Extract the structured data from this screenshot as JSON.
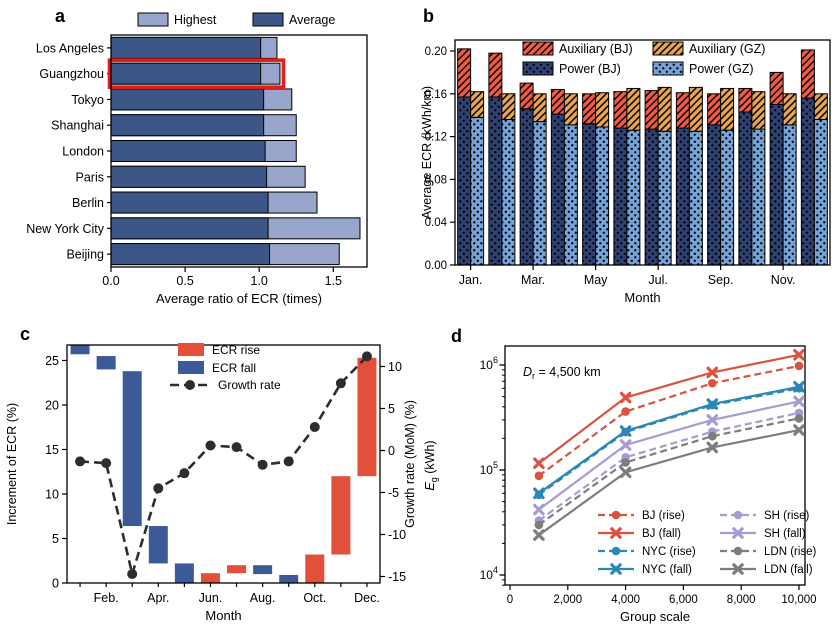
{
  "figure": {
    "background": "#ffffff"
  },
  "panels": {
    "a": {
      "label": "a"
    },
    "b": {
      "label": "b"
    },
    "c": {
      "label": "c"
    },
    "d": {
      "label": "d"
    }
  },
  "chart_data": [
    {
      "id": "a",
      "type": "bar",
      "orientation": "horizontal",
      "xlabel": "Average ratio of ECR (times)",
      "xlim": [
        0,
        1.73
      ],
      "xticks": [
        0.0,
        0.5,
        1.0,
        1.5
      ],
      "xtick_labels": [
        "0.0",
        "0.5",
        "1.0",
        "1.5"
      ],
      "categories": [
        "Los Angeles",
        "Guangzhou",
        "Tokyo",
        "Shanghai",
        "London",
        "Paris",
        "Berlin",
        "New York City",
        "Beijing"
      ],
      "series": [
        {
          "name": "Highest",
          "color": "#97a6ca",
          "values": [
            1.12,
            1.14,
            1.22,
            1.25,
            1.25,
            1.31,
            1.39,
            1.68,
            1.54
          ]
        },
        {
          "name": "Average",
          "color": "#3d5688",
          "values": [
            1.01,
            1.01,
            1.03,
            1.03,
            1.04,
            1.05,
            1.06,
            1.06,
            1.07
          ]
        }
      ],
      "legend": {
        "position": "top",
        "entries": [
          "Highest",
          "Average"
        ]
      },
      "highlight": {
        "category": "Guangzhou",
        "color": "#e61e19"
      }
    },
    {
      "id": "b",
      "type": "bar",
      "subtype": "grouped-stacked",
      "xlabel": "Month",
      "ylabel": "Average ECR (kWh/km)",
      "ylim": [
        0,
        0.21
      ],
      "yticks": [
        0.0,
        0.04,
        0.08,
        0.12,
        0.16,
        0.2
      ],
      "ytick_labels": [
        "0.00",
        "0.04",
        "0.08",
        "0.12",
        "0.16",
        "0.20"
      ],
      "categories": [
        "Jan.",
        "Feb.",
        "Mar.",
        "Apr.",
        "May",
        "Jun.",
        "Jul.",
        "Aug.",
        "Sep.",
        "Oct.",
        "Nov.",
        "Dec."
      ],
      "xtick_label_indices": [
        0,
        2,
        4,
        6,
        8,
        10
      ],
      "groups": [
        {
          "name": "BJ",
          "stacks": [
            {
              "name": "Power (BJ)",
              "color": "#2e4172",
              "hatch": "dots",
              "values": [
                0.157,
                0.157,
                0.146,
                0.141,
                0.132,
                0.128,
                0.127,
                0.128,
                0.131,
                0.143,
                0.15,
                0.156
              ]
            },
            {
              "name": "Auxiliary (BJ)",
              "color": "#f25a46",
              "hatch": "diag",
              "values": [
                0.045,
                0.041,
                0.024,
                0.023,
                0.028,
                0.034,
                0.036,
                0.033,
                0.029,
                0.022,
                0.03,
                0.045
              ]
            }
          ]
        },
        {
          "name": "GZ",
          "stacks": [
            {
              "name": "Power (GZ)",
              "color": "#75a3d7",
              "hatch": "dots",
              "values": [
                0.138,
                0.136,
                0.134,
                0.131,
                0.129,
                0.126,
                0.125,
                0.125,
                0.126,
                0.127,
                0.131,
                0.136
              ]
            },
            {
              "name": "Auxiliary (GZ)",
              "color": "#e7a452",
              "hatch": "diag",
              "values": [
                0.024,
                0.024,
                0.026,
                0.029,
                0.032,
                0.039,
                0.041,
                0.041,
                0.039,
                0.035,
                0.029,
                0.024
              ]
            }
          ]
        }
      ],
      "legend_order": [
        "Auxiliary (BJ)",
        "Power (BJ)",
        "Auxiliary (GZ)",
        "Power (GZ)"
      ]
    },
    {
      "id": "c",
      "type": "waterfall+line",
      "xlabel": "Month",
      "ylabel_left": "Increment of ECR (%)",
      "ylabel_right": "Growth rate (MoM) (%)",
      "ylim_left": [
        0,
        26.7
      ],
      "yticks_left": [
        0,
        5,
        10,
        15,
        20,
        25
      ],
      "ylim_right": [
        -15.8,
        12.6
      ],
      "yticks_right": [
        -15,
        -10,
        -5,
        0,
        5,
        10
      ],
      "categories": [
        "Jan.",
        "Feb.",
        "Mar.",
        "Apr.",
        "May",
        "Jun.",
        "Jul.",
        "Aug.",
        "Sep.",
        "Oct.",
        "Nov.",
        "Dec."
      ],
      "xtick_label_indices": [
        1,
        3,
        5,
        7,
        9,
        11
      ],
      "bars": [
        {
          "month": "Jan.",
          "type": "fall",
          "from": 25.7,
          "to": 26.7
        },
        {
          "month": "Feb.",
          "type": "fall",
          "from": 24.0,
          "to": 25.5
        },
        {
          "month": "Mar.",
          "type": "fall",
          "from": 6.4,
          "to": 23.8
        },
        {
          "month": "Apr.",
          "type": "fall",
          "from": 2.2,
          "to": 6.4
        },
        {
          "month": "May",
          "type": "fall",
          "from": 0,
          "to": 2.2
        },
        {
          "month": "Jun.",
          "type": "rise",
          "from": 0,
          "to": 1.1
        },
        {
          "month": "Jul.",
          "type": "rise",
          "from": 1.1,
          "to": 2.0
        },
        {
          "month": "Aug.",
          "type": "fall",
          "from": 1.0,
          "to": 2.0
        },
        {
          "month": "Sep.",
          "type": "fall",
          "from": 0,
          "to": 0.9
        },
        {
          "month": "Oct.",
          "type": "rise",
          "from": 0,
          "to": 3.2
        },
        {
          "month": "Nov.",
          "type": "rise",
          "from": 3.2,
          "to": 12.0
        },
        {
          "month": "Dec.",
          "type": "rise",
          "from": 12.0,
          "to": 25.3
        }
      ],
      "growth_rate": [
        -1.3,
        -1.5,
        -14.7,
        -4.5,
        -2.7,
        0.6,
        0.4,
        -1.7,
        -1.3,
        2.8,
        8.0,
        11.2
      ],
      "colors": {
        "rise": "#e2503c",
        "fall": "#3d5a98",
        "line": "#2d2d2d"
      },
      "legend": [
        "ECR rise",
        "ECR fall",
        "Growth rate"
      ]
    },
    {
      "id": "d",
      "type": "line",
      "xlabel": "Group scale",
      "ylabel": "E_g (kWh)",
      "yscale": "log",
      "ylim": [
        8000,
        1500000
      ],
      "ytick_exponents": [
        4,
        5,
        6
      ],
      "xlim": [
        -200,
        10200
      ],
      "xticks": [
        0,
        2000,
        4000,
        6000,
        8000,
        10000
      ],
      "xtick_labels": [
        "0",
        "2,000",
        "4,000",
        "6,000",
        "8,000",
        "10,000"
      ],
      "x": [
        1000,
        4000,
        7000,
        10000
      ],
      "annotation": "D_r = 4,500 km",
      "series": [
        {
          "name": "BJ (fall)",
          "color": "#d9533f",
          "style": "solid",
          "marker": "x",
          "values": [
            116000,
            490000,
            850000,
            1250000
          ]
        },
        {
          "name": "BJ (rise)",
          "color": "#d9533f",
          "style": "dashed",
          "marker": "circle",
          "values": [
            88000,
            360000,
            670000,
            980000
          ]
        },
        {
          "name": "NYC (fall)",
          "color": "#2e86b5",
          "style": "solid",
          "marker": "x",
          "values": [
            60000,
            235000,
            425000,
            620000
          ]
        },
        {
          "name": "NYC (rise)",
          "color": "#2e86b5",
          "style": "dashed",
          "marker": "circle",
          "values": [
            58000,
            230000,
            415000,
            600000
          ]
        },
        {
          "name": "SH (fall)",
          "color": "#a79bd2",
          "style": "solid",
          "marker": "x",
          "values": [
            42000,
            173000,
            300000,
            450000
          ]
        },
        {
          "name": "SH (rise)",
          "color": "#a79bd2",
          "style": "dashed",
          "marker": "circle",
          "values": [
            33000,
            132000,
            232000,
            350000
          ]
        },
        {
          "name": "LDN (fall)",
          "color": "#7d7d7d",
          "style": "solid",
          "marker": "x",
          "values": [
            24000,
            95000,
            164000,
            240000
          ]
        },
        {
          "name": "LDN (rise)",
          "color": "#7d7d7d",
          "style": "dashed",
          "marker": "circle",
          "values": [
            30000,
            118000,
            210000,
            310000
          ]
        }
      ],
      "legend_columns": [
        [
          "BJ (rise)",
          "BJ (fall)",
          "NYC (rise)",
          "NYC (fall)"
        ],
        [
          "SH (rise)",
          "SH (fall)",
          "LDN (rise)",
          "LDN (fall)"
        ]
      ]
    }
  ]
}
